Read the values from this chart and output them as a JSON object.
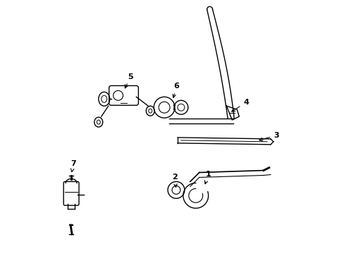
{
  "bg_color": "#ffffff",
  "line_color": "#000000",
  "lw": 1.0,
  "fig_width": 4.89,
  "fig_height": 3.6,
  "dpi": 100
}
